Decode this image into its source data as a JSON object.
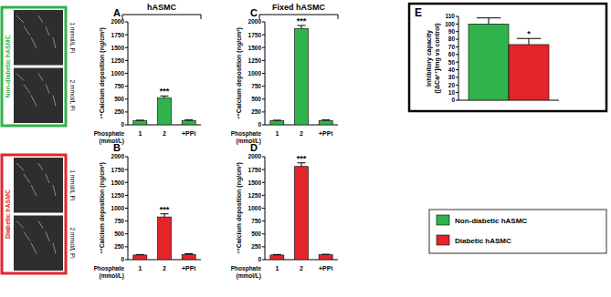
{
  "chart_data": [
    {
      "type": "bar",
      "title": "A",
      "categories": [
        "1",
        "2",
        "+PPi"
      ],
      "values": [
        80,
        520,
        85
      ],
      "errors": [
        10,
        40,
        10
      ],
      "color": "#2fb34a",
      "y_label": "⁴⁵Calcium deposition (ng/cm²)",
      "x_label": [
        "Phosphate",
        "(mmol/L)"
      ],
      "ylim": [
        0,
        2000
      ],
      "yticks": [
        0,
        250,
        500,
        750,
        1000,
        1250,
        1500,
        1750,
        2000
      ],
      "grid": false,
      "annotations": [
        {
          "index": 1,
          "text": "***"
        }
      ]
    },
    {
      "type": "bar",
      "title": "B",
      "categories": [
        "1",
        "2",
        "+PPi"
      ],
      "values": [
        90,
        830,
        100
      ],
      "errors": [
        10,
        60,
        15
      ],
      "color": "#e3242b",
      "y_label": "⁴⁵Calcium deposition (ng/cm²)",
      "x_label": [
        "Phosphate",
        "(mmol/L)"
      ],
      "ylim": [
        0,
        2000
      ],
      "yticks": [
        0,
        250,
        500,
        750,
        1000,
        1250,
        1500,
        1750,
        2000
      ],
      "grid": false,
      "annotations": [
        {
          "index": 1,
          "text": "***"
        }
      ]
    },
    {
      "type": "bar",
      "title": "C",
      "categories": [
        "1",
        "2",
        "+PPi"
      ],
      "values": [
        80,
        1870,
        85
      ],
      "errors": [
        10,
        60,
        10
      ],
      "color": "#2fb34a",
      "y_label": "⁴⁵Calcium deposition (ng/cm²)",
      "x_label": [
        "Phosphate",
        "(mmol/L)"
      ],
      "ylim": [
        0,
        2000
      ],
      "yticks": [
        0,
        250,
        500,
        750,
        1000,
        1250,
        1500,
        1750,
        2000
      ],
      "grid": false,
      "annotations": [
        {
          "index": 1,
          "text": "***"
        }
      ]
    },
    {
      "type": "bar",
      "title": "D",
      "categories": [
        "1",
        "2",
        "+PPi"
      ],
      "values": [
        90,
        1810,
        95
      ],
      "errors": [
        10,
        70,
        10
      ],
      "color": "#e3242b",
      "y_label": "⁴⁵Calcium deposition (ng/cm²)",
      "x_label": [
        "Phosphate",
        "(mmol/L)"
      ],
      "ylim": [
        0,
        2000
      ],
      "yticks": [
        0,
        250,
        500,
        750,
        1000,
        1250,
        1500,
        1750,
        2000
      ],
      "grid": false,
      "annotations": [
        {
          "index": 1,
          "text": "***"
        }
      ]
    },
    {
      "type": "bar",
      "title": "E",
      "categories": [
        null
      ],
      "series": [
        {
          "name": "Non-diabetic hASMC",
          "color": "#2fb34a",
          "values": [
            100
          ],
          "errors": [
            8
          ]
        },
        {
          "name": "Diabetic hASMC",
          "color": "#e3242b",
          "values": [
            73
          ],
          "errors": [
            8
          ]
        }
      ],
      "y_label": [
        "Inhibitory capacity",
        "([ΔCa²⁺]/mg vs control)"
      ],
      "ylim": [
        0,
        110
      ],
      "yticks": [
        0,
        10,
        20,
        30,
        40,
        50,
        60,
        70,
        80,
        90,
        100,
        110
      ],
      "grid": false,
      "legend": "bottom",
      "annotations": [
        {
          "series": 1,
          "index": 0,
          "text": "*"
        }
      ]
    }
  ],
  "headers": [
    {
      "text": "hASMC",
      "panels": [
        "A",
        "B"
      ]
    },
    {
      "text": "Fixed hASMC",
      "panels": [
        "C",
        "D"
      ]
    }
  ],
  "micrographs": [
    {
      "group": "Non-diabetic hASMC",
      "rows": [
        "1 mmol/L Pi",
        "2 mmol/L Pi"
      ]
    },
    {
      "group": "Diabetic hASMC",
      "rows": [
        "1 mmol/L Pi",
        "2 mmol/L Pi"
      ]
    }
  ]
}
